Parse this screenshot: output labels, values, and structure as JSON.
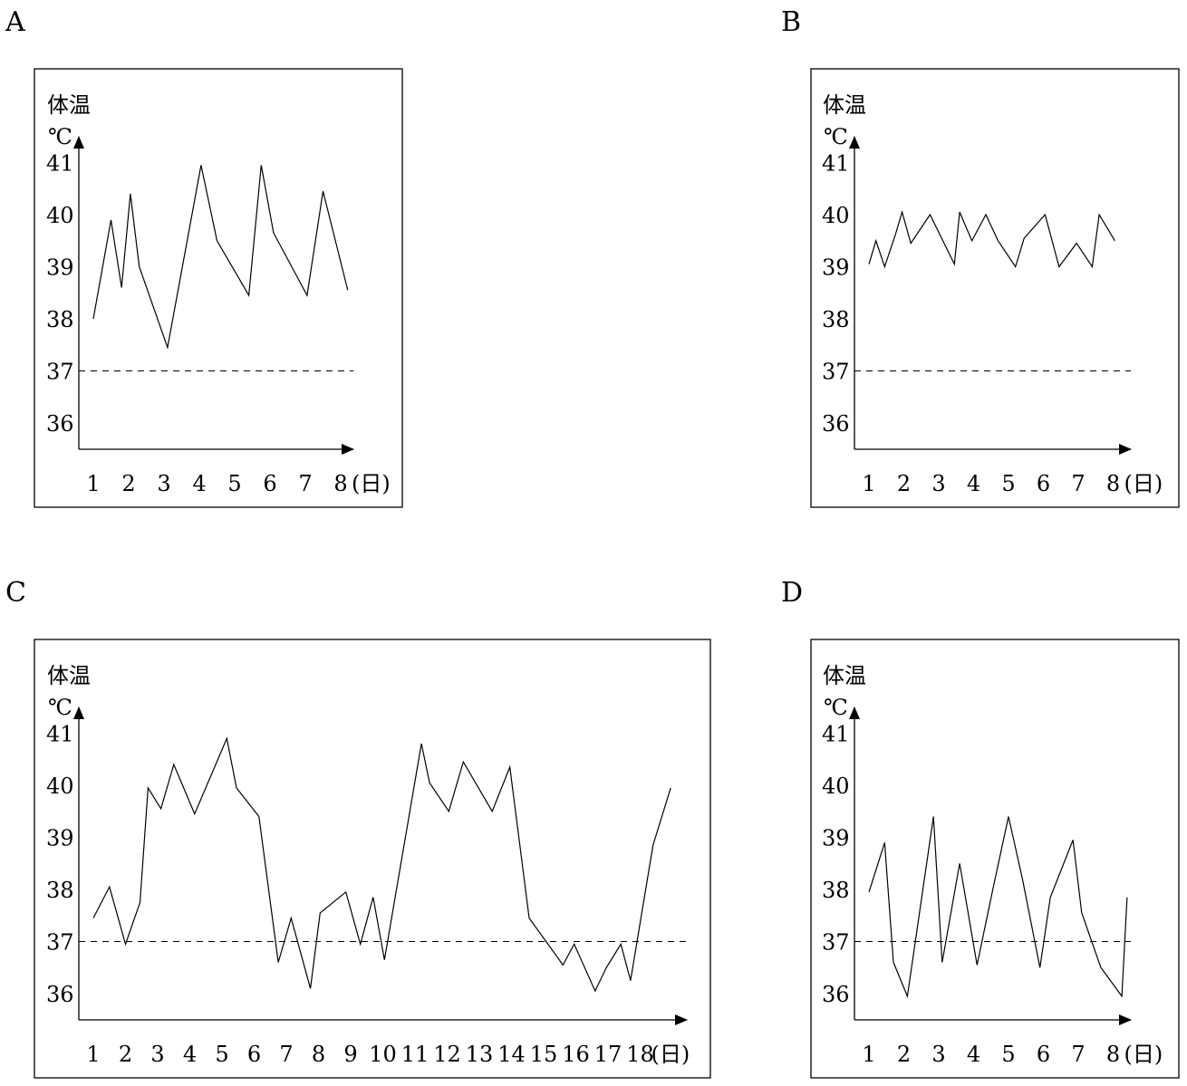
{
  "chart_data": [
    {
      "type": "line",
      "panel_label": "A",
      "ylabel": "体温",
      "yunit": "℃",
      "xunit": "(日)",
      "y_ticks": [
        36,
        37,
        38,
        39,
        40,
        41
      ],
      "x_ticks": [
        1,
        2,
        3,
        4,
        5,
        6,
        7,
        8
      ],
      "reference_line": 37,
      "x": [
        1,
        1.5,
        1.8,
        2.05,
        2.3,
        3.1,
        4.05,
        4.5,
        5.4,
        5.75,
        6.1,
        7.05,
        7.5,
        8.2
      ],
      "y": [
        38.0,
        39.9,
        38.6,
        40.4,
        39.0,
        37.45,
        40.95,
        39.5,
        38.45,
        40.95,
        39.65,
        38.45,
        40.45,
        38.55
      ]
    },
    {
      "type": "line",
      "panel_label": "B",
      "ylabel": "体温",
      "yunit": "℃",
      "xunit": "(日)",
      "y_ticks": [
        36,
        37,
        38,
        39,
        40,
        41
      ],
      "x_ticks": [
        1,
        2,
        3,
        4,
        5,
        6,
        7,
        8
      ],
      "reference_line": 37,
      "x": [
        1,
        1.2,
        1.45,
        1.75,
        1.95,
        2.2,
        2.75,
        3.45,
        3.6,
        3.95,
        4.35,
        4.7,
        5.2,
        5.45,
        6.05,
        6.45,
        6.95,
        7.4,
        7.6,
        8.05
      ],
      "y": [
        39.05,
        39.5,
        39.0,
        39.6,
        40.05,
        39.45,
        40.0,
        39.05,
        40.05,
        39.5,
        40.0,
        39.5,
        39.0,
        39.55,
        40.0,
        39.0,
        39.45,
        39.0,
        40.0,
        39.5
      ]
    },
    {
      "type": "line",
      "panel_label": "C",
      "ylabel": "体温",
      "yunit": "℃",
      "xunit": "(日)",
      "y_ticks": [
        36,
        37,
        38,
        39,
        40,
        41
      ],
      "x_ticks": [
        1,
        2,
        3,
        4,
        5,
        6,
        7,
        8,
        9,
        10,
        11,
        12,
        13,
        14,
        15,
        16,
        17,
        18
      ],
      "reference_line": 37,
      "x": [
        1,
        1.5,
        2.0,
        2.45,
        2.7,
        3.1,
        3.5,
        4.15,
        5.15,
        5.45,
        6.15,
        6.75,
        7.15,
        7.75,
        8.05,
        8.85,
        9.3,
        9.7,
        10.05,
        11.2,
        11.45,
        12.05,
        12.5,
        13.4,
        13.95,
        14.55,
        15.6,
        15.95,
        16.6,
        16.95,
        17.4,
        17.7,
        18.4,
        18.95
      ],
      "y": [
        37.45,
        38.05,
        36.95,
        37.75,
        39.95,
        39.55,
        40.4,
        39.45,
        40.9,
        39.95,
        39.4,
        36.6,
        37.45,
        36.1,
        37.55,
        37.95,
        36.95,
        37.85,
        36.65,
        40.8,
        40.05,
        39.5,
        40.45,
        39.5,
        40.35,
        37.45,
        36.55,
        36.95,
        36.05,
        36.5,
        36.95,
        36.25,
        38.85,
        39.95
      ]
    },
    {
      "type": "line",
      "panel_label": "D",
      "ylabel": "体温",
      "yunit": "℃",
      "xunit": "(日)",
      "y_ticks": [
        36,
        37,
        38,
        39,
        40,
        41
      ],
      "x_ticks": [
        1,
        2,
        3,
        4,
        5,
        6,
        7,
        8
      ],
      "reference_line": 37,
      "x": [
        1,
        1.45,
        1.7,
        2.1,
        2.85,
        3.1,
        3.6,
        4.1,
        4.55,
        5.0,
        5.4,
        5.9,
        6.2,
        6.85,
        7.1,
        7.65,
        8.25,
        8.4
      ],
      "y": [
        37.95,
        38.9,
        36.6,
        35.95,
        39.4,
        36.6,
        38.5,
        36.55,
        38.0,
        39.4,
        38.2,
        36.5,
        37.85,
        38.95,
        37.55,
        36.5,
        35.95,
        37.85
      ]
    }
  ]
}
